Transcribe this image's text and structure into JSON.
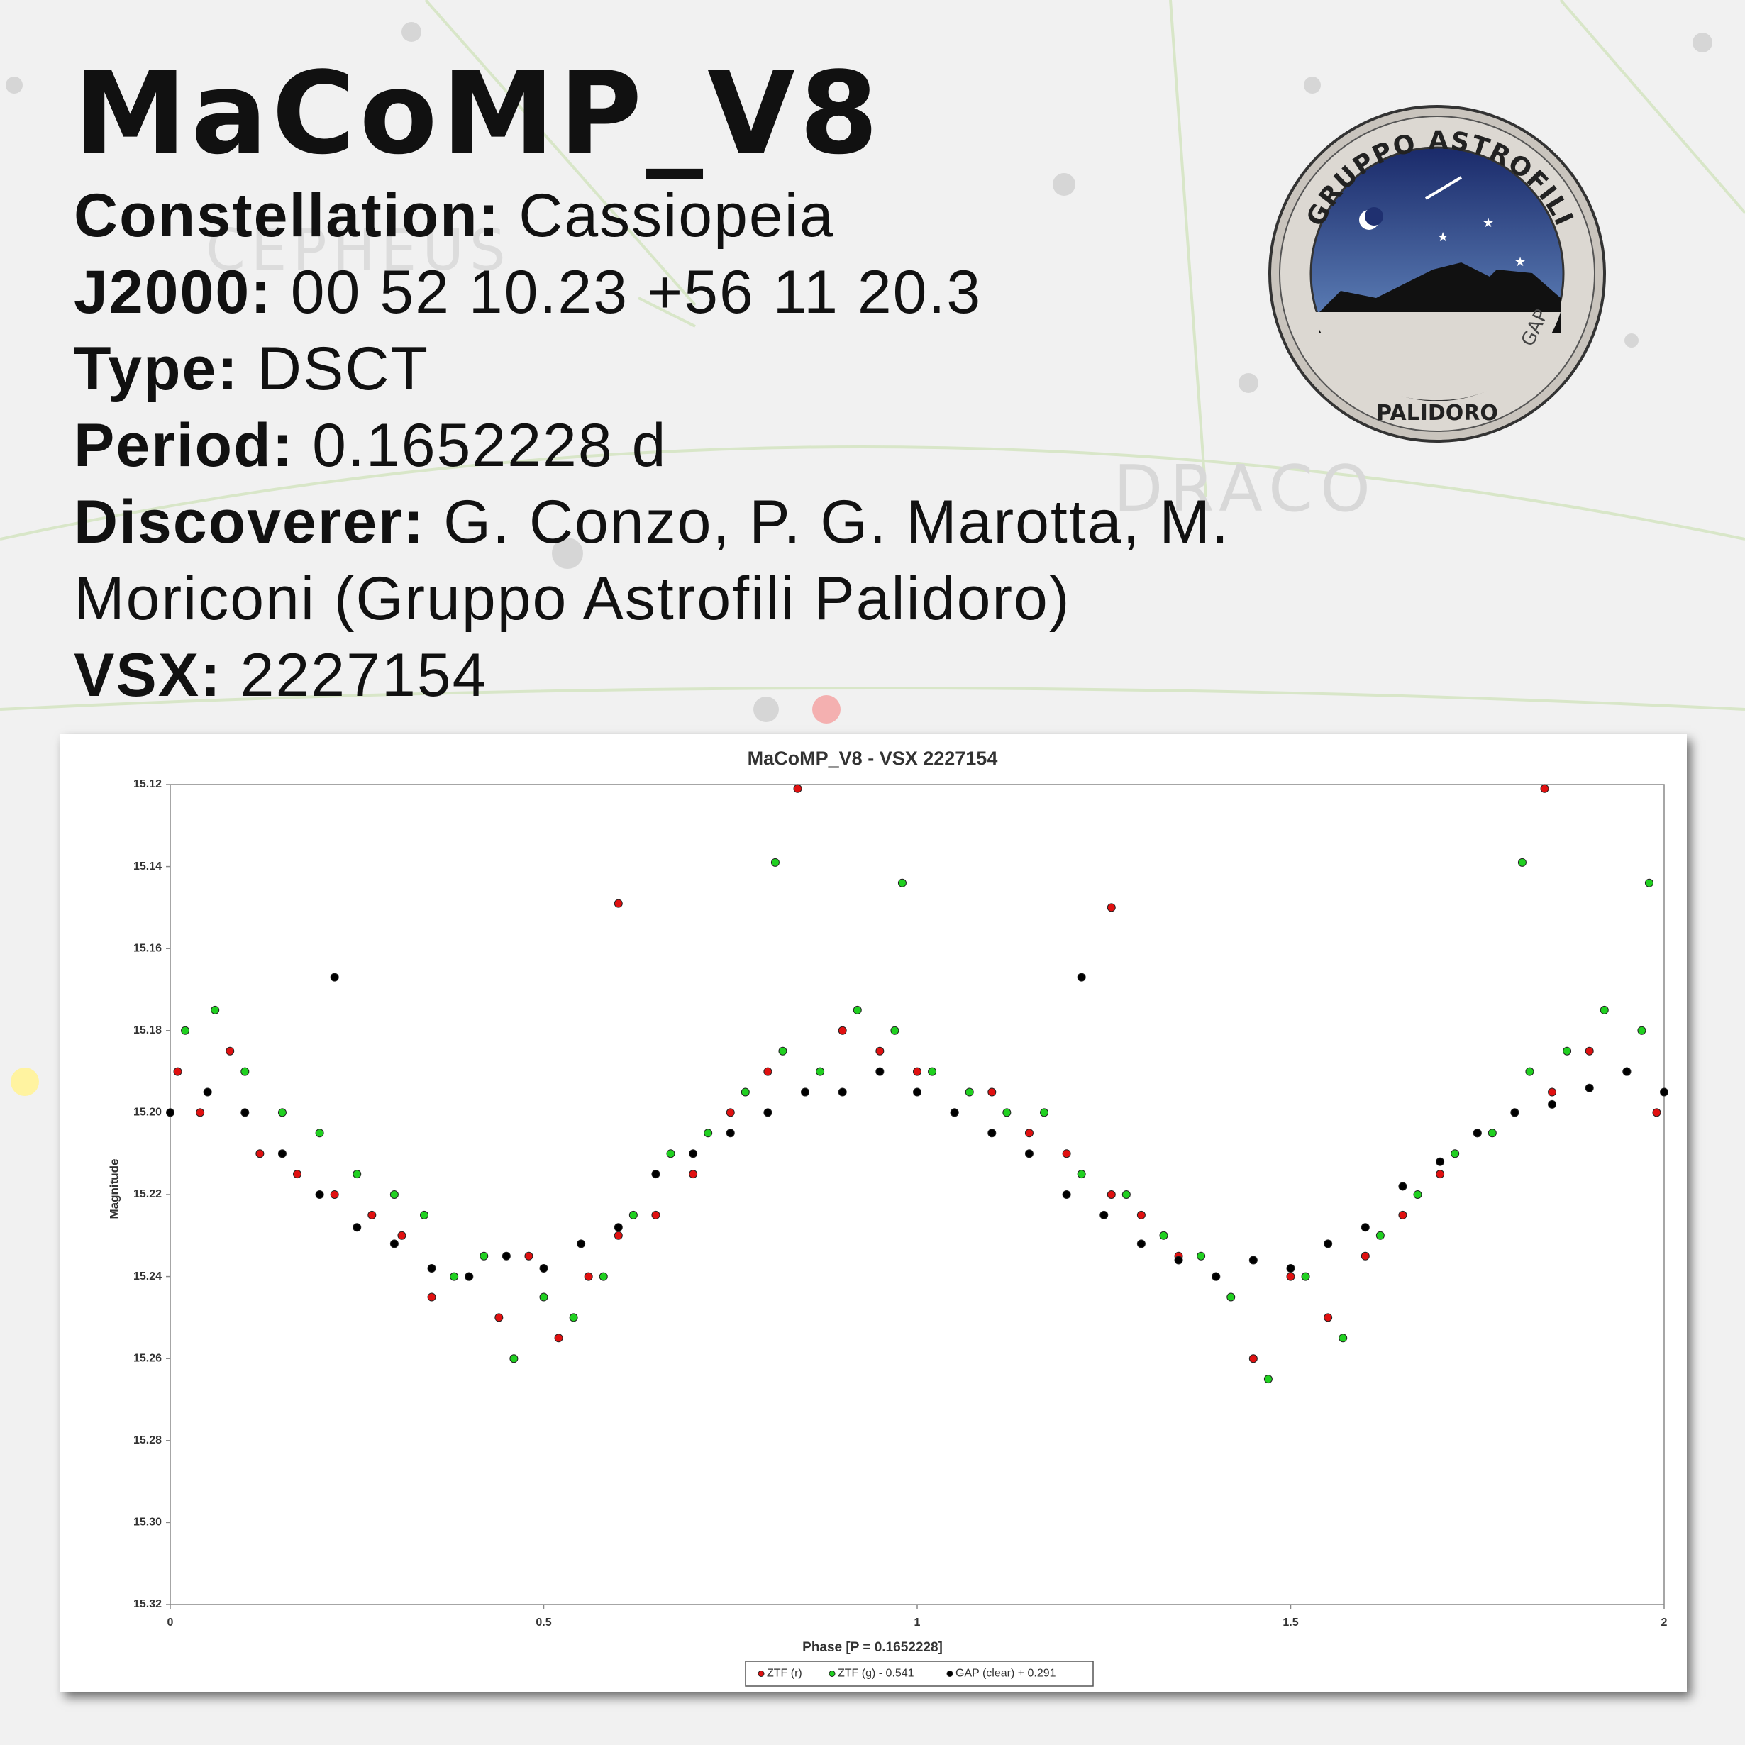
{
  "header": {
    "title": "MaCoMP_V8",
    "info": [
      {
        "label": "Constellation:",
        "value": "Cassiopeia"
      },
      {
        "label": "J2000:",
        "value": "00 52 10.23 +56 11 20.3"
      },
      {
        "label": "Type:",
        "value": "DSCT"
      },
      {
        "label": "Period:",
        "value": "0.1652228 d"
      },
      {
        "label": "Discoverer:",
        "value": "G. Conzo, P. G. Marotta, M. Moriconi (Gruppo Astrofili Palidoro)"
      },
      {
        "label": "VSX:",
        "value": "2227154"
      }
    ]
  },
  "background": {
    "labels": [
      "CEPHEUS",
      "DRACO"
    ]
  },
  "logo": {
    "top": "GRUPPO ASTROFILI",
    "bottom": "PALIDORO",
    "side": "GAP"
  },
  "chart_data": {
    "type": "scatter",
    "title": "MaCoMP_V8 - VSX 2227154",
    "xlabel": "Phase [P = 0.1652228]",
    "ylabel": "Magnitude",
    "xlim": [
      0,
      2
    ],
    "xticks": [
      0,
      0.5,
      1,
      1.5,
      2
    ],
    "ylim": [
      15.12,
      15.32
    ],
    "y_inverted": true,
    "grid": false,
    "legend": "bottom",
    "yticks": [
      15.12,
      15.14,
      15.16,
      15.18,
      {
        "value": 15.2,
        "label": "15.20"
      },
      15.22,
      15.24,
      15.26,
      15.28,
      {
        "value": 15.3,
        "label": "15.30"
      },
      15.32
    ],
    "series": [
      {
        "name": "ZTF (r)",
        "color": "#e01010",
        "x": [
          0.01,
          0.04,
          0.08,
          0.12,
          0.17,
          0.22,
          0.27,
          0.31,
          0.35,
          0.4,
          0.44,
          0.48,
          0.52,
          0.56,
          0.6,
          0.65,
          0.7,
          0.75,
          0.8,
          0.85,
          0.9,
          0.95,
          1.0,
          1.05,
          1.1,
          1.15,
          1.2,
          1.26,
          1.3,
          1.35,
          1.4,
          1.45,
          1.5,
          1.55,
          1.6,
          1.65,
          1.7,
          1.75,
          1.8,
          1.85,
          1.9,
          1.95,
          1.99,
          0.6,
          0.84,
          1.26,
          1.84
        ],
        "values": [
          15.19,
          15.2,
          15.185,
          15.21,
          15.215,
          15.22,
          15.225,
          15.23,
          15.245,
          15.24,
          15.25,
          15.235,
          15.255,
          15.24,
          15.23,
          15.225,
          15.215,
          15.2,
          15.19,
          15.195,
          15.18,
          15.185,
          15.19,
          15.2,
          15.195,
          15.205,
          15.21,
          15.22,
          15.225,
          15.235,
          15.24,
          15.26,
          15.24,
          15.25,
          15.235,
          15.225,
          15.215,
          15.205,
          15.2,
          15.195,
          15.185,
          15.19,
          15.2,
          15.149,
          15.121,
          15.15,
          15.121
        ]
      },
      {
        "name": "ZTF (g) - 0.541",
        "color": "#20d020",
        "x": [
          0.02,
          0.06,
          0.1,
          0.15,
          0.2,
          0.25,
          0.3,
          0.34,
          0.38,
          0.42,
          0.46,
          0.5,
          0.54,
          0.58,
          0.62,
          0.67,
          0.72,
          0.77,
          0.82,
          0.87,
          0.92,
          0.97,
          1.02,
          1.07,
          1.12,
          1.17,
          1.22,
          1.28,
          1.33,
          1.38,
          1.42,
          1.47,
          1.52,
          1.57,
          1.62,
          1.67,
          1.72,
          1.77,
          1.82,
          1.87,
          1.92,
          1.97,
          0.81,
          0.98,
          1.81,
          1.98
        ],
        "values": [
          15.18,
          15.175,
          15.19,
          15.2,
          15.205,
          15.215,
          15.22,
          15.225,
          15.24,
          15.235,
          15.26,
          15.245,
          15.25,
          15.24,
          15.225,
          15.21,
          15.205,
          15.195,
          15.185,
          15.19,
          15.175,
          15.18,
          15.19,
          15.195,
          15.2,
          15.2,
          15.215,
          15.22,
          15.23,
          15.235,
          15.245,
          15.265,
          15.24,
          15.255,
          15.23,
          15.22,
          15.21,
          15.205,
          15.19,
          15.185,
          15.175,
          15.18,
          15.139,
          15.144,
          15.139,
          15.144
        ]
      },
      {
        "name": "GAP (clear) + 0.291",
        "color": "#000000",
        "x": [
          0.0,
          0.05,
          0.1,
          0.15,
          0.2,
          0.25,
          0.3,
          0.35,
          0.4,
          0.45,
          0.5,
          0.55,
          0.6,
          0.65,
          0.7,
          0.75,
          0.8,
          0.85,
          0.9,
          0.95,
          1.0,
          1.05,
          1.1,
          1.15,
          1.2,
          1.25,
          1.3,
          1.35,
          1.4,
          1.45,
          1.5,
          1.55,
          1.6,
          1.65,
          1.7,
          1.75,
          1.8,
          1.85,
          1.9,
          1.95,
          2.0,
          0.22,
          1.22
        ],
        "values": [
          15.2,
          15.195,
          15.2,
          15.21,
          15.22,
          15.228,
          15.232,
          15.238,
          15.24,
          15.235,
          15.238,
          15.232,
          15.228,
          15.215,
          15.21,
          15.205,
          15.2,
          15.195,
          15.195,
          15.19,
          15.195,
          15.2,
          15.205,
          15.21,
          15.22,
          15.225,
          15.232,
          15.236,
          15.24,
          15.236,
          15.238,
          15.232,
          15.228,
          15.218,
          15.212,
          15.205,
          15.2,
          15.198,
          15.194,
          15.19,
          15.195,
          15.167,
          15.167
        ]
      }
    ]
  }
}
